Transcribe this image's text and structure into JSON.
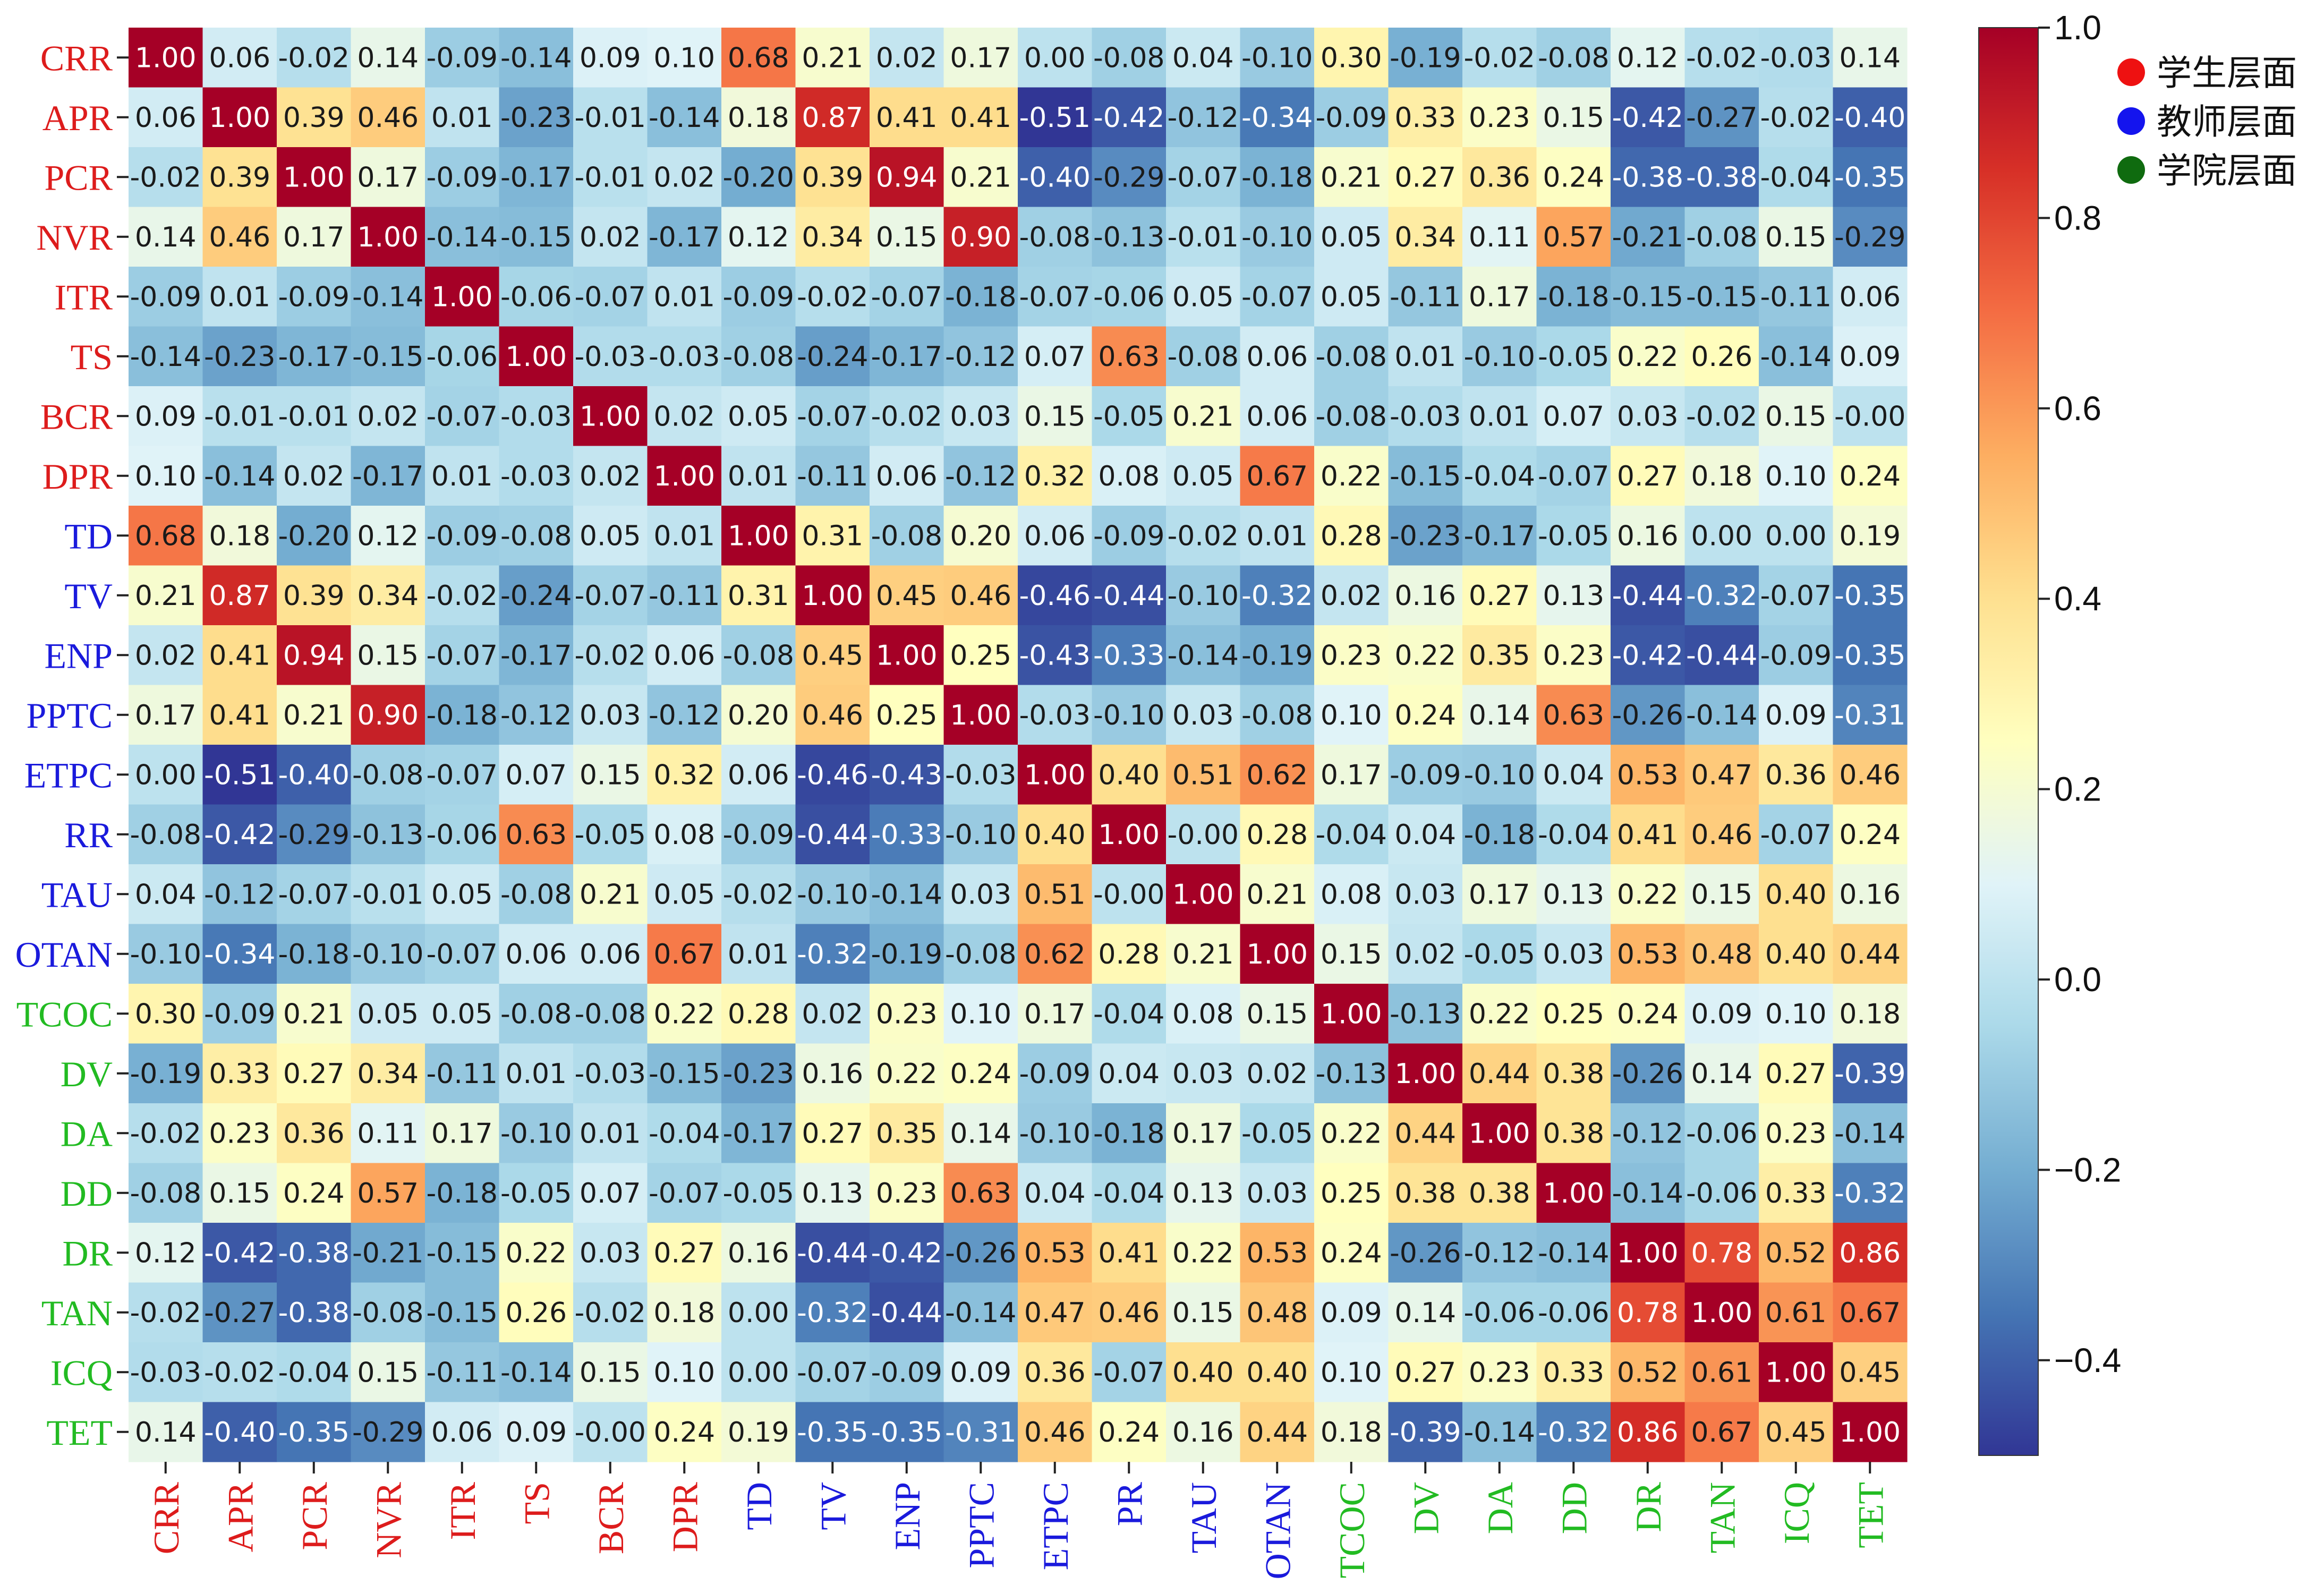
{
  "chart_data": {
    "type": "heatmap",
    "row_labels": [
      "CRR",
      "APR",
      "PCR",
      "NVR",
      "ITR",
      "TS",
      "BCR",
      "DPR",
      "TD",
      "TV",
      "ENP",
      "PPTC",
      "ETPC",
      "RR",
      "TAU",
      "OTAN",
      "TCOC",
      "DV",
      "DA",
      "DD",
      "DR",
      "TAN",
      "ICQ",
      "TET"
    ],
    "col_labels": [
      "CRR",
      "APR",
      "PCR",
      "NVR",
      "ITR",
      "TS",
      "BCR",
      "DPR",
      "TD",
      "TV",
      "ENP",
      "PPTC",
      "ETPC",
      "PR",
      "TAU",
      "OTAN",
      "TCOC",
      "DV",
      "DA",
      "DD",
      "DR",
      "TAN",
      "ICQ",
      "TET"
    ],
    "label_groups": {
      "student": [
        "CRR",
        "APR",
        "PCR",
        "NVR",
        "ITR",
        "TS",
        "BCR",
        "DPR"
      ],
      "teacher": [
        "TD",
        "TV",
        "ENP",
        "PPTC",
        "ETPC",
        "RR",
        "PR",
        "TAU",
        "OTAN"
      ],
      "college": [
        "TCOC",
        "DV",
        "DA",
        "DD",
        "DR",
        "TAN",
        "ICQ",
        "TET"
      ]
    },
    "group_colors": {
      "student": "#dd1c1c",
      "teacher": "#1a1adc",
      "college": "#22bb22"
    },
    "values": [
      [
        1.0,
        0.06,
        -0.02,
        0.14,
        -0.09,
        -0.14,
        0.09,
        0.1,
        0.68,
        0.21,
        0.02,
        0.17,
        0.0,
        -0.08,
        0.04,
        -0.1,
        0.3,
        -0.19,
        -0.02,
        -0.08,
        0.12,
        -0.02,
        -0.03,
        0.14
      ],
      [
        0.06,
        1.0,
        0.39,
        0.46,
        0.01,
        -0.23,
        -0.01,
        -0.14,
        0.18,
        0.87,
        0.41,
        0.41,
        -0.51,
        -0.42,
        -0.12,
        -0.34,
        -0.09,
        0.33,
        0.23,
        0.15,
        -0.42,
        -0.27,
        -0.02,
        -0.4
      ],
      [
        -0.02,
        0.39,
        1.0,
        0.17,
        -0.09,
        -0.17,
        -0.01,
        0.02,
        -0.2,
        0.39,
        0.94,
        0.21,
        -0.4,
        -0.29,
        -0.07,
        -0.18,
        0.21,
        0.27,
        0.36,
        0.24,
        -0.38,
        -0.38,
        -0.04,
        -0.35
      ],
      [
        0.14,
        0.46,
        0.17,
        1.0,
        -0.14,
        -0.15,
        0.02,
        -0.17,
        0.12,
        0.34,
        0.15,
        0.9,
        -0.08,
        -0.13,
        -0.01,
        -0.1,
        0.05,
        0.34,
        0.11,
        0.57,
        -0.21,
        -0.08,
        0.15,
        -0.29
      ],
      [
        -0.09,
        0.01,
        -0.09,
        -0.14,
        1.0,
        -0.06,
        -0.07,
        0.01,
        -0.09,
        -0.02,
        -0.07,
        -0.18,
        -0.07,
        -0.06,
        0.05,
        -0.07,
        0.05,
        -0.11,
        0.17,
        -0.18,
        -0.15,
        -0.15,
        -0.11,
        0.06
      ],
      [
        -0.14,
        -0.23,
        -0.17,
        -0.15,
        -0.06,
        1.0,
        -0.03,
        -0.03,
        -0.08,
        -0.24,
        -0.17,
        -0.12,
        0.07,
        0.63,
        -0.08,
        0.06,
        -0.08,
        0.01,
        -0.1,
        -0.05,
        0.22,
        0.26,
        -0.14,
        0.09
      ],
      [
        0.09,
        -0.01,
        -0.01,
        0.02,
        -0.07,
        -0.03,
        1.0,
        0.02,
        0.05,
        -0.07,
        -0.02,
        0.03,
        0.15,
        -0.05,
        0.21,
        0.06,
        -0.08,
        -0.03,
        0.01,
        0.07,
        0.03,
        -0.02,
        0.15,
        -0.0
      ],
      [
        0.1,
        -0.14,
        0.02,
        -0.17,
        0.01,
        -0.03,
        0.02,
        1.0,
        0.01,
        -0.11,
        0.06,
        -0.12,
        0.32,
        0.08,
        0.05,
        0.67,
        0.22,
        -0.15,
        -0.04,
        -0.07,
        0.27,
        0.18,
        0.1,
        0.24
      ],
      [
        0.68,
        0.18,
        -0.2,
        0.12,
        -0.09,
        -0.08,
        0.05,
        0.01,
        1.0,
        0.31,
        -0.08,
        0.2,
        0.06,
        -0.09,
        -0.02,
        0.01,
        0.28,
        -0.23,
        -0.17,
        -0.05,
        0.16,
        0.0,
        0.0,
        0.19
      ],
      [
        0.21,
        0.87,
        0.39,
        0.34,
        -0.02,
        -0.24,
        -0.07,
        -0.11,
        0.31,
        1.0,
        0.45,
        0.46,
        -0.46,
        -0.44,
        -0.1,
        -0.32,
        0.02,
        0.16,
        0.27,
        0.13,
        -0.44,
        -0.32,
        -0.07,
        -0.35
      ],
      [
        0.02,
        0.41,
        0.94,
        0.15,
        -0.07,
        -0.17,
        -0.02,
        0.06,
        -0.08,
        0.45,
        1.0,
        0.25,
        -0.43,
        -0.33,
        -0.14,
        -0.19,
        0.23,
        0.22,
        0.35,
        0.23,
        -0.42,
        -0.44,
        -0.09,
        -0.35
      ],
      [
        0.17,
        0.41,
        0.21,
        0.9,
        -0.18,
        -0.12,
        0.03,
        -0.12,
        0.2,
        0.46,
        0.25,
        1.0,
        -0.03,
        -0.1,
        0.03,
        -0.08,
        0.1,
        0.24,
        0.14,
        0.63,
        -0.26,
        -0.14,
        0.09,
        -0.31
      ],
      [
        0.0,
        -0.51,
        -0.4,
        -0.08,
        -0.07,
        0.07,
        0.15,
        0.32,
        0.06,
        -0.46,
        -0.43,
        -0.03,
        1.0,
        0.4,
        0.51,
        0.62,
        0.17,
        -0.09,
        -0.1,
        0.04,
        0.53,
        0.47,
        0.36,
        0.46
      ],
      [
        -0.08,
        -0.42,
        -0.29,
        -0.13,
        -0.06,
        0.63,
        -0.05,
        0.08,
        -0.09,
        -0.44,
        -0.33,
        -0.1,
        0.4,
        1.0,
        -0.0,
        0.28,
        -0.04,
        0.04,
        -0.18,
        -0.04,
        0.41,
        0.46,
        -0.07,
        0.24
      ],
      [
        0.04,
        -0.12,
        -0.07,
        -0.01,
        0.05,
        -0.08,
        0.21,
        0.05,
        -0.02,
        -0.1,
        -0.14,
        0.03,
        0.51,
        -0.0,
        1.0,
        0.21,
        0.08,
        0.03,
        0.17,
        0.13,
        0.22,
        0.15,
        0.4,
        0.16
      ],
      [
        -0.1,
        -0.34,
        -0.18,
        -0.1,
        -0.07,
        0.06,
        0.06,
        0.67,
        0.01,
        -0.32,
        -0.19,
        -0.08,
        0.62,
        0.28,
        0.21,
        1.0,
        0.15,
        0.02,
        -0.05,
        0.03,
        0.53,
        0.48,
        0.4,
        0.44
      ],
      [
        0.3,
        -0.09,
        0.21,
        0.05,
        0.05,
        -0.08,
        -0.08,
        0.22,
        0.28,
        0.02,
        0.23,
        0.1,
        0.17,
        -0.04,
        0.08,
        0.15,
        1.0,
        -0.13,
        0.22,
        0.25,
        0.24,
        0.09,
        0.1,
        0.18
      ],
      [
        -0.19,
        0.33,
        0.27,
        0.34,
        -0.11,
        0.01,
        -0.03,
        -0.15,
        -0.23,
        0.16,
        0.22,
        0.24,
        -0.09,
        0.04,
        0.03,
        0.02,
        -0.13,
        1.0,
        0.44,
        0.38,
        -0.26,
        0.14,
        0.27,
        -0.39
      ],
      [
        -0.02,
        0.23,
        0.36,
        0.11,
        0.17,
        -0.1,
        0.01,
        -0.04,
        -0.17,
        0.27,
        0.35,
        0.14,
        -0.1,
        -0.18,
        0.17,
        -0.05,
        0.22,
        0.44,
        1.0,
        0.38,
        -0.12,
        -0.06,
        0.23,
        -0.14
      ],
      [
        -0.08,
        0.15,
        0.24,
        0.57,
        -0.18,
        -0.05,
        0.07,
        -0.07,
        -0.05,
        0.13,
        0.23,
        0.63,
        0.04,
        -0.04,
        0.13,
        0.03,
        0.25,
        0.38,
        0.38,
        1.0,
        -0.14,
        -0.06,
        0.33,
        -0.32
      ],
      [
        0.12,
        -0.42,
        -0.38,
        -0.21,
        -0.15,
        0.22,
        0.03,
        0.27,
        0.16,
        -0.44,
        -0.42,
        -0.26,
        0.53,
        0.41,
        0.22,
        0.53,
        0.24,
        -0.26,
        -0.12,
        -0.14,
        1.0,
        0.78,
        0.52,
        0.86
      ],
      [
        -0.02,
        -0.27,
        -0.38,
        -0.08,
        -0.15,
        0.26,
        -0.02,
        0.18,
        0.0,
        -0.32,
        -0.44,
        -0.14,
        0.47,
        0.46,
        0.15,
        0.48,
        0.09,
        0.14,
        -0.06,
        -0.06,
        0.78,
        1.0,
        0.61,
        0.67
      ],
      [
        -0.03,
        -0.02,
        -0.04,
        0.15,
        -0.11,
        -0.14,
        0.15,
        0.1,
        0.0,
        -0.07,
        -0.09,
        0.09,
        0.36,
        -0.07,
        0.4,
        0.4,
        0.1,
        0.27,
        0.23,
        0.33,
        0.52,
        0.61,
        1.0,
        0.45
      ],
      [
        0.14,
        -0.4,
        -0.35,
        -0.29,
        0.06,
        0.09,
        -0.0,
        0.24,
        0.19,
        -0.35,
        -0.35,
        -0.31,
        0.46,
        0.24,
        0.16,
        0.44,
        0.18,
        -0.39,
        -0.14,
        -0.32,
        0.86,
        0.67,
        0.45,
        1.0
      ]
    ],
    "colorbar": {
      "vmin": -0.5,
      "vmax": 1.0,
      "ticks": [
        1.0,
        0.8,
        0.6,
        0.4,
        0.2,
        0.0,
        -0.2,
        -0.4
      ],
      "tick_labels": [
        "1.0",
        "0.8",
        "0.6",
        "0.4",
        "0.2",
        "0.0",
        "−0.2",
        "−0.4"
      ],
      "colormap": "RdYlBu_r"
    },
    "legend": {
      "placement": "top-right",
      "items": [
        {
          "label": "学生层面",
          "color": "#ee1111"
        },
        {
          "label": "教师层面",
          "color": "#1414ee"
        },
        {
          "label": "学院层面",
          "color": "#0f6b0f"
        }
      ]
    }
  }
}
